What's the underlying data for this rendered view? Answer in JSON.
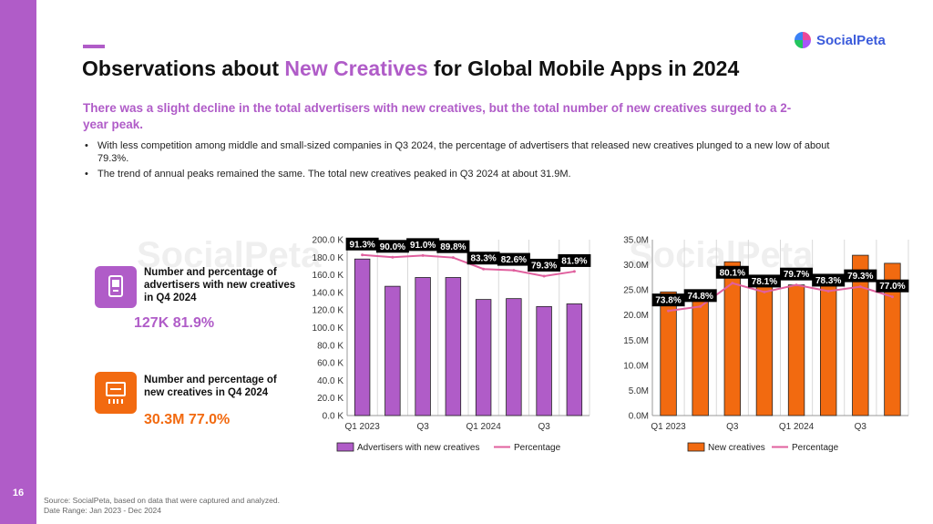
{
  "page": {
    "number": "16",
    "title_pre": "Observations about ",
    "title_highlight": "New Creatives",
    "title_post": " for Global Mobile Apps in 2024",
    "subtitle": "There was a slight decline in the total advertisers with new creatives, but the total number of new creatives surged to a 2-year peak.",
    "bullets": [
      "With less competition among middle and small-sized companies in Q3 2024, the percentage of advertisers that released new creatives plunged to a new low of about 79.3%.",
      "The trend of annual peaks remained the same. The total new creatives peaked in Q3 2024 at about 31.9M."
    ],
    "logo_text": "SocialPeta",
    "watermark_text": "SocialPeta",
    "footer_source": "Source: SocialPeta, based on data that were captured and analyzed.",
    "footer_range": "Date Range: Jan 2023 - Dec 2024"
  },
  "colors": {
    "accent": "#b05cc8",
    "orange": "#f26a10",
    "line": "#e0609e",
    "logo_blue": "#3b5bdb"
  },
  "kpis": [
    {
      "icon": "phone-icon",
      "label": "Number and percentage of advertisers with new creatives in Q4 2024",
      "value": "127K 81.9%",
      "color": "#b05cc8"
    },
    {
      "icon": "creative-icon",
      "label": "Number and percentage of new creatives in Q4 2024",
      "value": "30.3M 77.0%",
      "color": "#f26a10"
    }
  ],
  "chart_data": [
    {
      "type": "bar",
      "categories": [
        "Q1 2023",
        "Q2 2023",
        "Q3 2023",
        "Q4 2023",
        "Q1 2024",
        "Q2 2024",
        "Q3 2024",
        "Q4 2024"
      ],
      "x_tick_labels": [
        "Q1 2023",
        "",
        "Q3",
        "",
        "Q1 2024",
        "",
        "Q3",
        ""
      ],
      "series": [
        {
          "name": "Advertisers with new creatives",
          "type": "bar",
          "axis": "left",
          "values": [
            178,
            147,
            157,
            157,
            132,
            133,
            124,
            127
          ],
          "color": "#b05cc8"
        },
        {
          "name": "Percentage",
          "type": "line",
          "axis": "right",
          "values": [
            91.3,
            90.0,
            91.0,
            89.8,
            83.3,
            82.6,
            79.3,
            81.9
          ],
          "color": "#e0609e"
        }
      ],
      "data_labels": [
        "91.3%",
        "90.0%",
        "91.0%",
        "89.8%",
        "83.3%",
        "82.6%",
        "79.3%",
        "81.9%"
      ],
      "y_ticks": [
        "0.0 K",
        "20.0 K",
        "40.0 K",
        "60.0 K",
        "80.0 K",
        "100.0 K",
        "120.0 K",
        "140.0 K",
        "160.0 K",
        "180.0 K",
        "200.0 K"
      ],
      "ylim": [
        0,
        200
      ],
      "pct_lim": [
        0,
        100
      ],
      "legend": "bottom",
      "grid": "vertical"
    },
    {
      "type": "bar",
      "categories": [
        "Q1 2023",
        "Q2 2023",
        "Q3 2023",
        "Q4 2023",
        "Q1 2024",
        "Q2 2024",
        "Q3 2024",
        "Q4 2024"
      ],
      "x_tick_labels": [
        "Q1 2023",
        "",
        "Q3",
        "",
        "Q1 2024",
        "",
        "Q3",
        ""
      ],
      "series": [
        {
          "name": "New creatives",
          "type": "bar",
          "axis": "left",
          "values": [
            24.6,
            23.2,
            30.6,
            26.0,
            26.0,
            27.8,
            31.9,
            30.3
          ],
          "color": "#f26a10"
        },
        {
          "name": "Percentage",
          "type": "line",
          "axis": "right",
          "values": [
            73.8,
            74.8,
            80.1,
            78.1,
            79.7,
            78.3,
            79.3,
            77.0
          ],
          "color": "#e0609e"
        }
      ],
      "data_labels": [
        "73.8%",
        "74.8%",
        "80.1%",
        "78.1%",
        "79.7%",
        "78.3%",
        "79.3%",
        "77.0%"
      ],
      "y_ticks": [
        "0.0M",
        "5.0M",
        "10.0M",
        "15.0M",
        "20.0M",
        "25.0M",
        "30.0M",
        "35.0M"
      ],
      "ylim": [
        0,
        35
      ],
      "pct_lim": [
        50,
        90
      ],
      "legend": "bottom",
      "grid": "vertical"
    }
  ]
}
